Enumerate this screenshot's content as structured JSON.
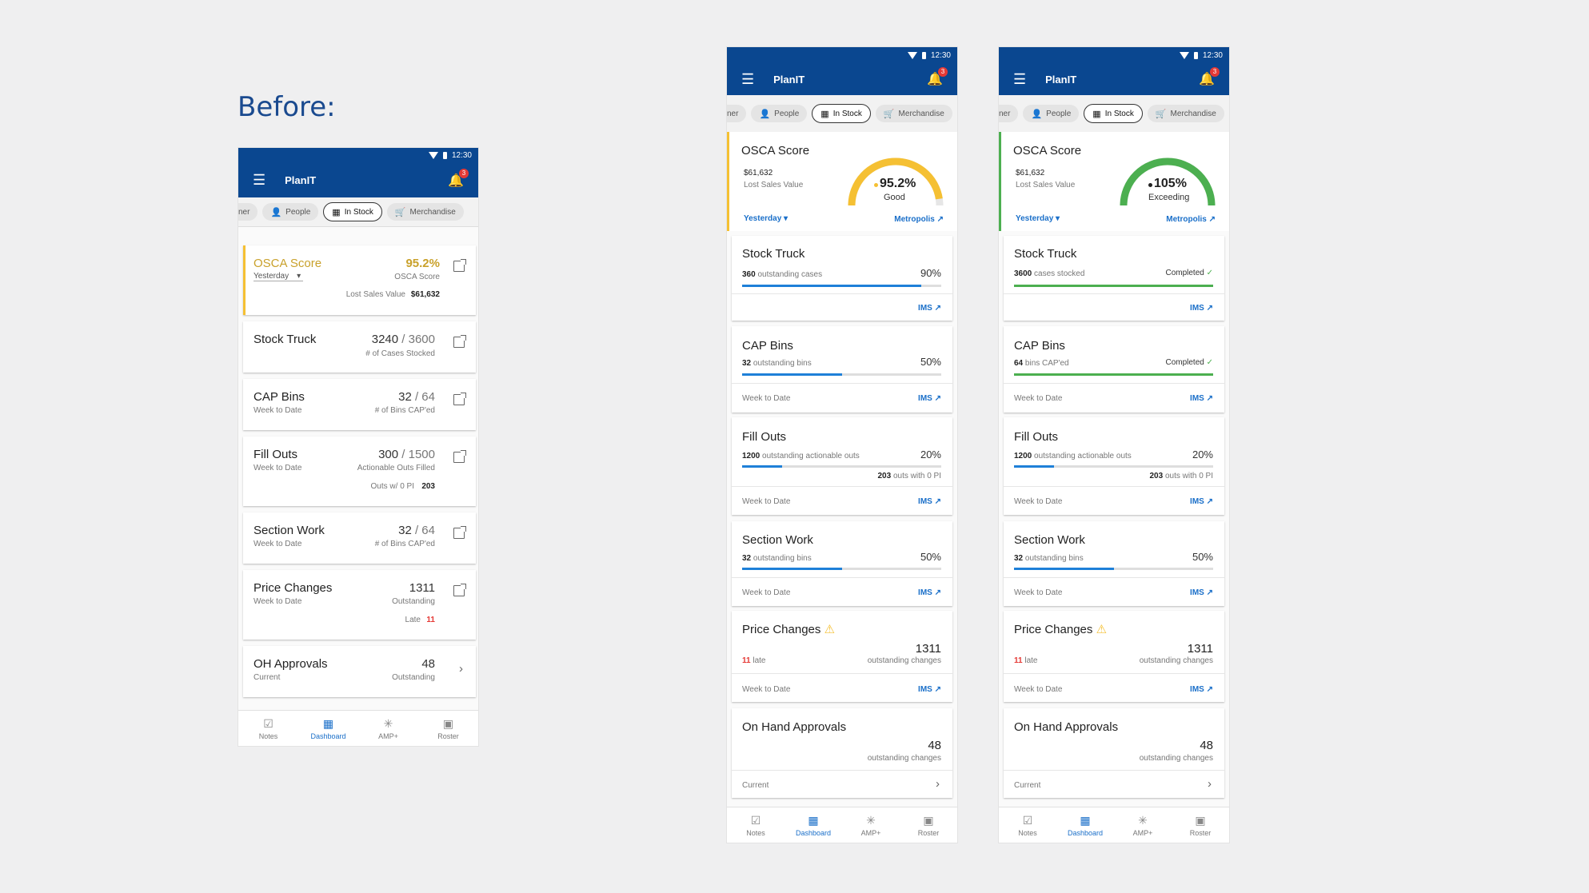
{
  "before_heading": "Before:",
  "colors": {
    "brand_blue": "#0a4790",
    "link_blue": "#1a6fc9",
    "gold": "#f5c033",
    "green": "#4caf50",
    "red": "#e53935"
  },
  "common": {
    "time": "12:30",
    "app_title": "PlanIT",
    "notification_count": "3",
    "chips": [
      {
        "label": "ner",
        "icon": "none"
      },
      {
        "label": "People",
        "icon": "person-icon"
      },
      {
        "label": "In Stock",
        "icon": "inventory-icon"
      },
      {
        "label": "Merchandise",
        "icon": "cart-icon"
      }
    ],
    "nav": [
      {
        "label": "Notes",
        "icon": "checkbox-icon"
      },
      {
        "label": "Dashboard",
        "icon": "dashboard-icon"
      },
      {
        "label": "AMP+",
        "icon": "spark-icon"
      },
      {
        "label": "Roster",
        "icon": "badge-icon"
      }
    ]
  },
  "before": {
    "osca": {
      "title": "OSCA Score",
      "value": "95.2%",
      "value_caption": "OSCA Score",
      "period": "Yesterday",
      "lsv_label": "Lost Sales Value",
      "lsv_value": "$61,632"
    },
    "stock_truck": {
      "title": "Stock Truck",
      "value": "3240",
      "total": "/ 3600",
      "caption": "# of Cases Stocked"
    },
    "cap_bins": {
      "title": "CAP Bins",
      "period": "Week to Date",
      "value": "32",
      "total": "/ 64",
      "caption": "# of Bins CAP'ed"
    },
    "fill_outs": {
      "title": "Fill Outs",
      "period": "Week to Date",
      "value": "300",
      "total": "/ 1500",
      "caption": "Actionable Outs Filled",
      "extra_label": "Outs w/ 0 PI",
      "extra_value": "203"
    },
    "section_work": {
      "title": "Section Work",
      "period": "Week to Date",
      "value": "32",
      "total": "/ 64",
      "caption": "# of Bins CAP'ed"
    },
    "price_changes": {
      "title": "Price Changes",
      "period": "Week to Date",
      "value": "1311",
      "caption": "Outstanding",
      "late_label": "Late",
      "late_value": "11"
    },
    "oh_approvals": {
      "title": "OH Approvals",
      "period": "Current",
      "value": "48",
      "caption": "Outstanding"
    }
  },
  "after1": {
    "osca": {
      "title": "OSCA Score",
      "lsv_value": "$61,632",
      "lsv_label": "Lost Sales Value",
      "gauge_value": "95.2%",
      "gauge_label": "Good",
      "gauge_fraction": 0.952,
      "period": "Yesterday",
      "link": "Metropolis"
    },
    "stock_truck": {
      "title": "Stock Truck",
      "count": "360",
      "desc": "outstanding cases",
      "pct": "90%",
      "fill": 0.9,
      "link": "IMS"
    },
    "cap_bins": {
      "title": "CAP Bins",
      "count": "32",
      "desc": "outstanding bins",
      "pct": "50%",
      "fill": 0.5,
      "period": "Week to Date",
      "link": "IMS"
    },
    "fill_outs": {
      "title": "Fill Outs",
      "count": "1200",
      "desc": "outstanding actionable outs",
      "pct": "20%",
      "fill": 0.2,
      "extra_count": "203",
      "extra_desc": "outs with 0 PI",
      "period": "Week to Date",
      "link": "IMS"
    },
    "section_work": {
      "title": "Section Work",
      "count": "32",
      "desc": "outstanding bins",
      "pct": "50%",
      "fill": 0.5,
      "period": "Week to Date",
      "link": "IMS"
    },
    "price_changes": {
      "title": "Price Changes",
      "value": "1311",
      "caption": "outstanding changes",
      "late_count": "11",
      "late_desc": "late",
      "period": "Week to Date",
      "link": "IMS"
    },
    "oh_approvals": {
      "title": "On Hand Approvals",
      "value": "48",
      "caption": "outstanding changes",
      "period": "Current"
    }
  },
  "after2": {
    "osca": {
      "title": "OSCA Score",
      "lsv_value": "$61,632",
      "lsv_label": "Lost Sales Value",
      "gauge_value": "105%",
      "gauge_label": "Exceeding",
      "gauge_fraction": 1.0,
      "period": "Yesterday",
      "link": "Metropolis"
    },
    "stock_truck": {
      "title": "Stock Truck",
      "count": "3600",
      "desc": "cases stocked",
      "status": "Completed",
      "fill": 1.0,
      "link": "IMS"
    },
    "cap_bins": {
      "title": "CAP Bins",
      "count": "64",
      "desc": "bins CAP'ed",
      "status": "Completed",
      "fill": 1.0,
      "period": "Week to Date",
      "link": "IMS"
    },
    "fill_outs": {
      "title": "Fill Outs",
      "count": "1200",
      "desc": "outstanding actionable outs",
      "pct": "20%",
      "fill": 0.2,
      "extra_count": "203",
      "extra_desc": "outs with 0 PI",
      "period": "Week to Date",
      "link": "IMS"
    },
    "section_work": {
      "title": "Section Work",
      "count": "32",
      "desc": "outstanding bins",
      "pct": "50%",
      "fill": 0.5,
      "period": "Week to Date",
      "link": "IMS"
    },
    "price_changes": {
      "title": "Price Changes",
      "value": "1311",
      "caption": "outstanding changes",
      "late_count": "11",
      "late_desc": "late",
      "period": "Week to Date",
      "link": "IMS"
    },
    "oh_approvals": {
      "title": "On Hand Approvals",
      "value": "48",
      "caption": "outstanding changes",
      "period": "Current"
    }
  }
}
